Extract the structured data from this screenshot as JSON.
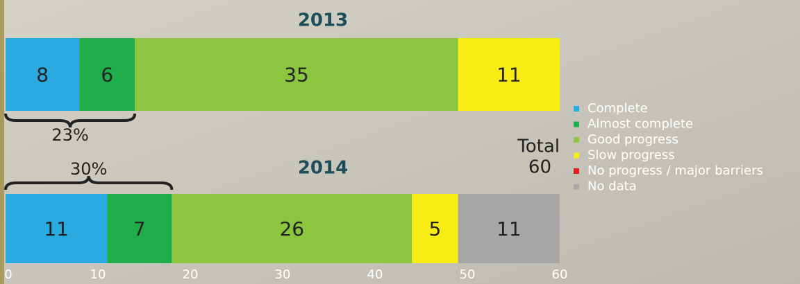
{
  "chart_data": {
    "type": "stacked-barh",
    "categories": [
      "2013",
      "2014"
    ],
    "series": [
      {
        "name": "Complete",
        "color": "#29abe2",
        "values": [
          8,
          11
        ]
      },
      {
        "name": "Almost complete",
        "color": "#1fae4a",
        "values": [
          6,
          7
        ]
      },
      {
        "name": "Good progress",
        "color": "#8cc63f",
        "values": [
          35,
          26
        ]
      },
      {
        "name": "Slow progress",
        "color": "#f7ec13",
        "values": [
          11,
          5
        ]
      },
      {
        "name": "No progress / major barriers",
        "color": "#e81e25",
        "values": [
          null,
          null
        ]
      },
      {
        "name": "No data",
        "color": "#a6a6a6",
        "values": [
          null,
          11
        ]
      }
    ],
    "annotations": [
      "23%",
      "30%"
    ],
    "total_label": "Total",
    "total": 60,
    "xlim": [
      0,
      60
    ],
    "xticks": [
      0,
      10,
      20,
      30,
      40,
      50,
      60
    ],
    "legend": "right"
  }
}
